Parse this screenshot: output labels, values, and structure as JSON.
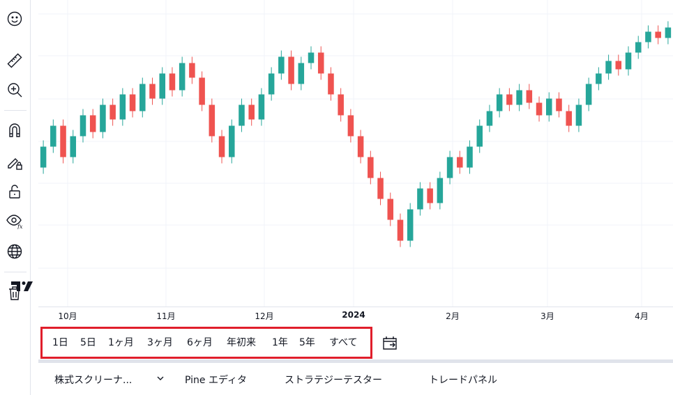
{
  "toolbar": {
    "icons": [
      "emoji-icon",
      "ruler-icon",
      "zoom-in-icon",
      "magnet-icon",
      "pencil-lock-icon",
      "lock-icon",
      "eye-fx-icon",
      "globe-icon",
      "trash-icon"
    ]
  },
  "time_axis": {
    "labels": [
      "10月",
      "11月",
      "12月",
      "2024",
      "2月",
      "3月",
      "4月"
    ]
  },
  "range_bar": {
    "buttons": [
      "1日",
      "5日",
      "1ヶ月",
      "3ヶ月",
      "6ヶ月",
      "年初来",
      "1年",
      "5年",
      "すべて"
    ]
  },
  "bottom_tabs": {
    "screener": "株式スクリーナ...",
    "pine": "Pine エディタ",
    "strategy": "ストラテジーテスター",
    "trading": "トレードパネル"
  },
  "colors": {
    "up": "#26a69a",
    "down": "#ef5350",
    "highlight": "#e01e2b",
    "grid": "#f0f3fa"
  },
  "chart_data": {
    "type": "candlestick",
    "series": [
      {
        "values": [
          [
            145,
            155
          ],
          [
            155,
            165
          ],
          [
            165,
            150
          ],
          [
            150,
            160
          ],
          [
            160,
            170
          ],
          [
            170,
            162
          ],
          [
            162,
            175
          ],
          [
            175,
            168
          ],
          [
            168,
            180
          ],
          [
            180,
            172
          ],
          [
            172,
            185
          ],
          [
            185,
            178
          ],
          [
            178,
            190
          ],
          [
            190,
            182
          ],
          [
            182,
            195
          ],
          [
            195,
            188
          ],
          [
            188,
            175
          ],
          [
            175,
            160
          ],
          [
            160,
            150
          ],
          [
            150,
            165
          ],
          [
            165,
            175
          ],
          [
            175,
            168
          ],
          [
            168,
            180
          ],
          [
            180,
            190
          ],
          [
            190,
            198
          ],
          [
            198,
            185
          ],
          [
            185,
            195
          ],
          [
            195,
            200
          ],
          [
            200,
            190
          ],
          [
            190,
            180
          ],
          [
            180,
            170
          ],
          [
            170,
            160
          ],
          [
            160,
            150
          ],
          [
            150,
            140
          ],
          [
            140,
            130
          ],
          [
            130,
            120
          ],
          [
            120,
            110
          ],
          [
            110,
            125
          ],
          [
            125,
            135
          ],
          [
            135,
            128
          ],
          [
            128,
            140
          ],
          [
            140,
            150
          ],
          [
            150,
            145
          ],
          [
            145,
            155
          ],
          [
            155,
            165
          ],
          [
            165,
            172
          ],
          [
            172,
            180
          ],
          [
            180,
            175
          ],
          [
            175,
            182
          ],
          [
            182,
            176
          ],
          [
            176,
            170
          ],
          [
            170,
            178
          ],
          [
            178,
            172
          ],
          [
            172,
            165
          ],
          [
            165,
            175
          ],
          [
            175,
            185
          ],
          [
            185,
            190
          ],
          [
            190,
            196
          ],
          [
            196,
            192
          ],
          [
            192,
            200
          ],
          [
            200,
            205
          ],
          [
            205,
            210
          ],
          [
            210,
            207
          ],
          [
            207,
            212
          ]
        ]
      }
    ]
  }
}
